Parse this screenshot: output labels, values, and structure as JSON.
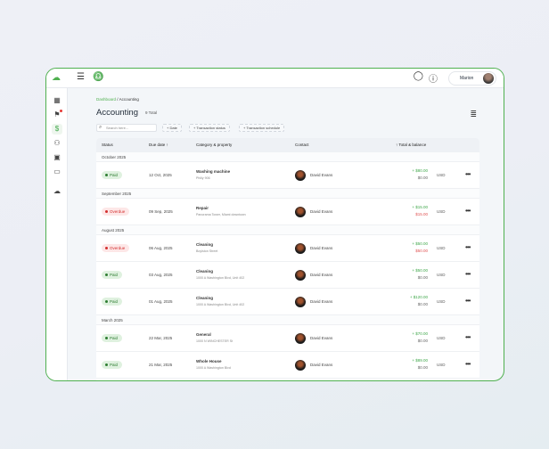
{
  "header": {
    "user_name": "Marion"
  },
  "breadcrumb": {
    "root": "Dashboard",
    "separator": "/",
    "current": "Accounting"
  },
  "page": {
    "title": "Accounting",
    "total": "9 Total"
  },
  "search": {
    "placeholder": "Search here..."
  },
  "filters": [
    "Date",
    "Transaction status",
    "Transaction schedule"
  ],
  "columns": {
    "status": "Status",
    "due": "Due date",
    "category": "Category & property",
    "contact": "Contact",
    "total": "Total & balance"
  },
  "colors": {
    "accent": "#4fb04f",
    "paid": "#2e7d32",
    "overdue": "#d32f2f"
  },
  "groups": [
    {
      "label": "October 2025",
      "rows": [
        {
          "status": "Paid",
          "due": "12 Oct, 2025",
          "category": "Washing machine",
          "property": "Philly 906",
          "contact": "David Evans",
          "amount": "+ $80.00",
          "balance": "$0.00",
          "currency": "USD"
        }
      ]
    },
    {
      "label": "September 2025",
      "rows": [
        {
          "status": "Overdue",
          "due": "09 Sep, 2025",
          "category": "Repair",
          "property": "Panorama Tower, Miami downtown",
          "contact": "David Evans",
          "amount": "+ $15.00",
          "balance": "$15.00",
          "currency": "USD"
        }
      ]
    },
    {
      "label": "August 2025",
      "rows": [
        {
          "status": "Overdue",
          "due": "06 Aug, 2025",
          "category": "Cleaning",
          "property": "Boylston Street",
          "contact": "David Evans",
          "amount": "+ $50.00",
          "balance": "$50.00",
          "currency": "USD"
        },
        {
          "status": "Paid",
          "due": "03 Aug, 2025",
          "category": "Cleaning",
          "property": "1000 A Washington Blvd, Unit 402",
          "contact": "David Evans",
          "amount": "+ $50.00",
          "balance": "$0.00",
          "currency": "USD"
        },
        {
          "status": "Paid",
          "due": "01 Aug, 2025",
          "category": "Cleaning",
          "property": "1000 A Washington Blvd, Unit 402",
          "contact": "David Evans",
          "amount": "+ $120.00",
          "balance": "$0.00",
          "currency": "USD"
        }
      ]
    },
    {
      "label": "March 2025",
      "rows": [
        {
          "status": "Paid",
          "due": "22 Mar, 2025",
          "category": "General",
          "property": "1000 N WINCHESTER St",
          "contact": "David Evans",
          "amount": "+ $70.00",
          "balance": "$0.00",
          "currency": "USD"
        },
        {
          "status": "Paid",
          "due": "21 Mar, 2025",
          "category": "Whole House",
          "property": "1000 A Washington Blvd",
          "contact": "David Evans",
          "amount": "+ $89.00",
          "balance": "$0.00",
          "currency": "USD"
        }
      ]
    }
  ]
}
